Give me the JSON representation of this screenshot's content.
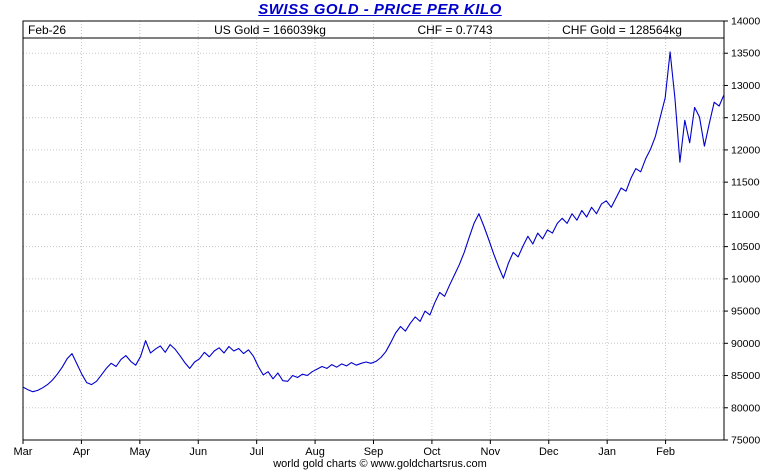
{
  "page": {
    "title": "SWISS GOLD - PRICE PER KILO",
    "footer": "world gold charts © www.goldchartsrus.com"
  },
  "header": {
    "date": "Feb-26",
    "us_gold": "US Gold = 166039kg",
    "chf_rate": "CHF = 0.7743",
    "chf_gold": "CHF Gold = 128564kg"
  },
  "chart_data": {
    "type": "line",
    "title": "SWISS GOLD - PRICE PER KILO",
    "xlabel": "",
    "ylabel": "",
    "x_tick_labels": [
      "Mar",
      "Apr",
      "May",
      "Jun",
      "Jul",
      "Aug",
      "Sep",
      "Oct",
      "Nov",
      "Dec",
      "Jan",
      "Feb"
    ],
    "y_ticks": [
      75000,
      80000,
      85000,
      90000,
      95000,
      100000,
      105000,
      110000,
      115000,
      120000,
      125000,
      130000,
      135000,
      140000
    ],
    "ylim": [
      75000,
      140000
    ],
    "grid": true,
    "legend_position": "none",
    "line_color": "#0000cc",
    "grid_color": "#c8c8c8",
    "values": [
      83200,
      82800,
      82500,
      82700,
      83100,
      83600,
      84300,
      85200,
      86300,
      87600,
      88400,
      86800,
      85200,
      83900,
      83600,
      84100,
      85100,
      86100,
      86900,
      86400,
      87500,
      88100,
      87200,
      86600,
      88000,
      90400,
      88500,
      89100,
      89600,
      88600,
      89800,
      89100,
      88100,
      87000,
      86100,
      87100,
      87600,
      88600,
      87900,
      88800,
      89300,
      88500,
      89500,
      88800,
      89200,
      88400,
      89000,
      88000,
      86400,
      85100,
      85600,
      84500,
      85400,
      84200,
      84100,
      85000,
      84700,
      85200,
      85000,
      85600,
      86000,
      86400,
      86100,
      86700,
      86300,
      86800,
      86500,
      87000,
      86600,
      86900,
      87100,
      86900,
      87200,
      87800,
      88700,
      90100,
      91600,
      92600,
      91900,
      93100,
      94100,
      93400,
      95000,
      94400,
      96300,
      97900,
      97300,
      99000,
      100600,
      102200,
      104100,
      106400,
      108600,
      110100,
      108200,
      106100,
      103900,
      101900,
      100100,
      102400,
      104100,
      103400,
      105100,
      106600,
      105400,
      107100,
      106200,
      107600,
      107100,
      108600,
      109400,
      108600,
      110100,
      109100,
      110600,
      109600,
      111100,
      110100,
      111600,
      112100,
      111100,
      112600,
      114100,
      113600,
      115600,
      117100,
      116600,
      118600,
      120100,
      122100,
      125100,
      128100,
      135200,
      127900,
      118100,
      124600,
      121100,
      126600,
      125100,
      120600,
      124100,
      127400,
      126800,
      128564
    ]
  }
}
